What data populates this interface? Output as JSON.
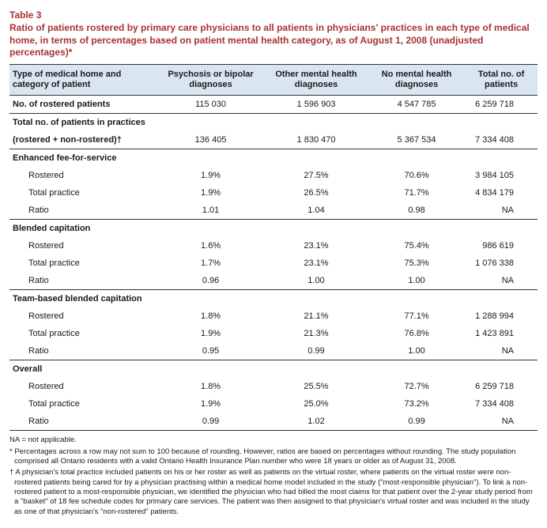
{
  "table_label": "Table 3",
  "table_title": "Ratio of patients rostered by primary care physicians to all patients in physicians' practices in each type of medical home, in terms of percentages based on patient mental health category, as of August 1, 2008 (unadjusted percentages)*",
  "columns": {
    "c0": "Type of medical home and category of patient",
    "c1": "Psychosis or bipolar diagnoses",
    "c2": "Other mental health diagnoses",
    "c3": "No mental health diagnoses",
    "c4": "Total no. of patients"
  },
  "rows": {
    "rostered_label": "No. of rostered patients",
    "rostered": {
      "c1": "115 030",
      "c2": "1 596 903",
      "c3": "4 547 785",
      "c4": "6 259 718"
    },
    "total_practices_label1": "Total no. of patients in practices",
    "total_practices_label2": "(rostered + non-rostered)†",
    "total_practices": {
      "c1": "136 405",
      "c2": "1 830 470",
      "c3": "5 367 534",
      "c4": "7 334 408"
    },
    "efs_header": "Enhanced fee-for-service",
    "efs_rostered_label": "Rostered",
    "efs_rostered": {
      "c1": "1.9%",
      "c2": "27.5%",
      "c3": "70.6%",
      "c4": "3 984 105"
    },
    "efs_total_label": "Total practice",
    "efs_total": {
      "c1": "1.9%",
      "c2": "26.5%",
      "c3": "71.7%",
      "c4": "4 834 179"
    },
    "efs_ratio_label": "Ratio",
    "efs_ratio": {
      "c1": "1.01",
      "c2": "1.04",
      "c3": "0.98",
      "c4": "NA"
    },
    "bc_header": "Blended capitation",
    "bc_rostered_label": "Rostered",
    "bc_rostered": {
      "c1": "1.6%",
      "c2": "23.1%",
      "c3": "75.4%",
      "c4": "986 619"
    },
    "bc_total_label": "Total practice",
    "bc_total": {
      "c1": "1.7%",
      "c2": "23.1%",
      "c3": "75.3%",
      "c4": "1 076 338"
    },
    "bc_ratio_label": "Ratio",
    "bc_ratio": {
      "c1": "0.96",
      "c2": "1.00",
      "c3": "1.00",
      "c4": "NA"
    },
    "tbc_header": "Team-based blended capitation",
    "tbc_rostered_label": "Rostered",
    "tbc_rostered": {
      "c1": "1.8%",
      "c2": "21.1%",
      "c3": "77.1%",
      "c4": "1 288 994"
    },
    "tbc_total_label": "Total practice",
    "tbc_total": {
      "c1": "1.9%",
      "c2": "21.3%",
      "c3": "76.8%",
      "c4": "1 423 891"
    },
    "tbc_ratio_label": "Ratio",
    "tbc_ratio": {
      "c1": "0.95",
      "c2": "0.99",
      "c3": "1.00",
      "c4": "NA"
    },
    "overall_header": "Overall",
    "ov_rostered_label": "Rostered",
    "ov_rostered": {
      "c1": "1.8%",
      "c2": "25.5%",
      "c3": "72.7%",
      "c4": "6 259 718"
    },
    "ov_total_label": "Total practice",
    "ov_total": {
      "c1": "1.9%",
      "c2": "25.0%",
      "c3": "73.2%",
      "c4": "7 334 408"
    },
    "ov_ratio_label": "Ratio",
    "ov_ratio": {
      "c1": "0.99",
      "c2": "1.02",
      "c3": "0.99",
      "c4": "NA"
    }
  },
  "footnotes": {
    "na": "NA = not applicable.",
    "star": "* Percentages across a row may not sum to 100 because of rounding. However, ratios are based on percentages without rounding. The study population comprised all Ontario residents with a valid Ontario Health Insurance Plan number who were 18 years or older as of August 31, 2008.",
    "dagger": "† A physician's total practice included patients on his or her roster as well as patients on the virtual roster, where patients on the virtual roster were non-rostered patients being cared for by a physician practising within a medical home model included in the study (\"most-responsible physician\"). To link a non-rostered patient to a most-responsible physician, we identified the physician who had billed the most claims for that patient over the 2-year study period from a \"basket\" of 18 fee schedule codes for primary care services. The patient was then assigned to that physician's virtual roster and was included in the study as one of that physician's \"non-rostered\" patients."
  },
  "style": {
    "header_bg": "#d9e6f2",
    "accent_color": "#a83232",
    "font_size_body": 11,
    "font_size_footnote": 9.5
  }
}
